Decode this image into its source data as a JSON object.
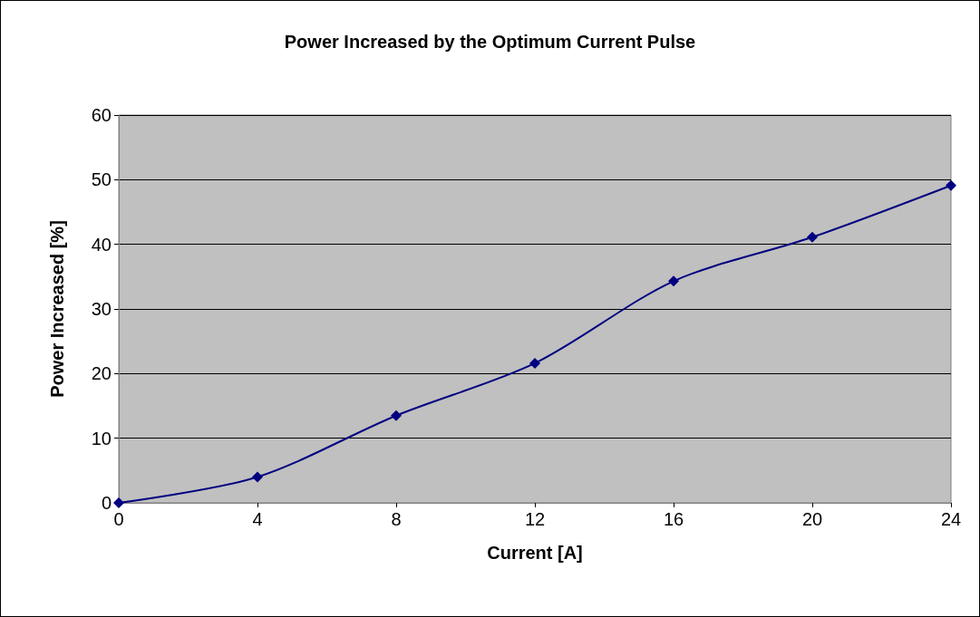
{
  "chart_data": {
    "type": "line",
    "title": "Power Increased by the Optimum Current Pulse",
    "xlabel": "Current [A]",
    "ylabel": "Power Increased [%]",
    "x": [
      0,
      4,
      8,
      12,
      16,
      20,
      24
    ],
    "series": [
      {
        "color": "#000080",
        "values": [
          0,
          4,
          13.5,
          21.6,
          34.3,
          41.1,
          49.1
        ]
      }
    ],
    "xlim": [
      0,
      24
    ],
    "xticks": [
      0,
      4,
      8,
      12,
      16,
      20,
      24
    ],
    "ylim": [
      0,
      60
    ],
    "yticks": [
      0,
      10,
      20,
      30,
      40,
      50,
      60
    ],
    "grid": "y",
    "marker": "diamond",
    "line_style": "solid"
  }
}
